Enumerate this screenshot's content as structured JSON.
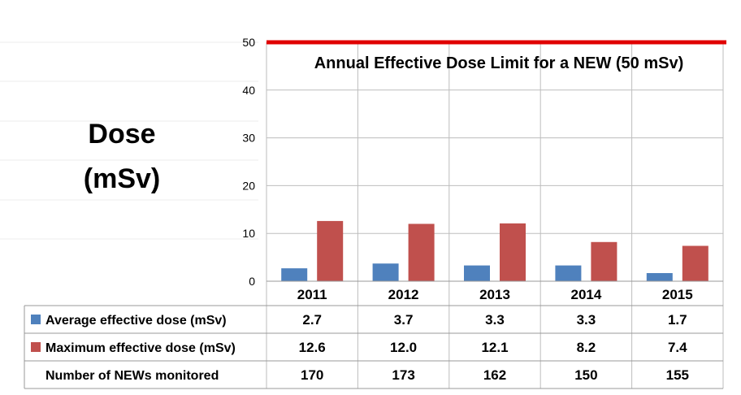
{
  "chart_data": {
    "type": "bar",
    "ylabel_line1": "Dose",
    "ylabel_line2": "(mSv)",
    "ylim": [
      0,
      50
    ],
    "yticks": [
      0,
      10,
      20,
      30,
      40,
      50
    ],
    "categories": [
      "2011",
      "2012",
      "2013",
      "2014",
      "2015"
    ],
    "series": [
      {
        "name": "Average effective dose (mSv)",
        "color": "#4f81bd",
        "values": [
          2.7,
          3.7,
          3.3,
          3.3,
          1.7
        ],
        "labels": [
          "2.7",
          "3.7",
          "3.3",
          "3.3",
          "1.7"
        ]
      },
      {
        "name": "Maximum effective dose (mSv)",
        "color": "#c0504d",
        "values": [
          12.6,
          12.0,
          12.1,
          8.2,
          7.4
        ],
        "labels": [
          "12.6",
          "12.0",
          "12.1",
          "8.2",
          "7.4"
        ]
      }
    ],
    "table_rows": [
      {
        "label": "Number of NEWs monitored",
        "values": [
          "170",
          "173",
          "162",
          "150",
          "155"
        ]
      }
    ],
    "reference_line": {
      "value": 50,
      "label": "Annual Effective Dose Limit for a NEW (50 mSv)",
      "color": "#e00000"
    },
    "grid": true,
    "legend": "data-table"
  }
}
